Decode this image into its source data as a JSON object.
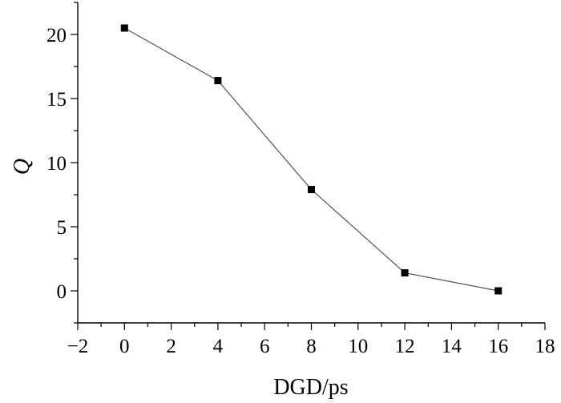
{
  "chart_data": {
    "type": "line",
    "title": "",
    "xlabel": "DGD/ps",
    "ylabel": "Q",
    "xlim": [
      -2,
      18
    ],
    "ylim": [
      -2.5,
      22.5
    ],
    "xticks": [
      -2,
      0,
      2,
      4,
      6,
      8,
      10,
      12,
      14,
      16,
      18
    ],
    "xtick_labels": [
      "−2",
      "0",
      "2",
      "4",
      "6",
      "8",
      "10",
      "12",
      "14",
      "16",
      "18"
    ],
    "yticks": [
      0,
      5,
      10,
      15,
      20
    ],
    "ytick_labels": [
      "0",
      "5",
      "10",
      "15",
      "20"
    ],
    "grid": false,
    "legend": "none",
    "series": [
      {
        "marker": "square",
        "color": "#000000",
        "line_color": "#555555",
        "x": [
          0,
          4,
          8,
          12,
          16
        ],
        "y": [
          20.5,
          16.4,
          7.9,
          1.4,
          0.0
        ]
      }
    ]
  }
}
